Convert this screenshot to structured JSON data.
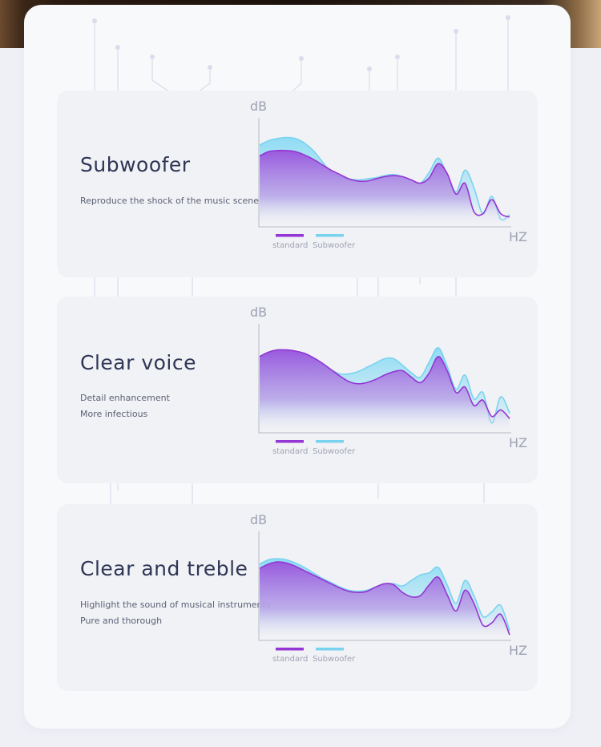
{
  "colors": {
    "standard": "#9436d3",
    "subwoofer": "#79d3ef",
    "axis": "#b7bbc7"
  },
  "cards": [
    {
      "title": "Subwoofer",
      "lines": [
        "Reproduce the shock of the music scene"
      ],
      "chart_data": {
        "type": "area",
        "ylabel": "dB",
        "xlabel": "HZ",
        "series": [
          {
            "name": "standard",
            "values": [
              0.65,
              0.69,
              0.7,
              0.7,
              0.69,
              0.66,
              0.62,
              0.57,
              0.52,
              0.48,
              0.44,
              0.42,
              0.42,
              0.44,
              0.46,
              0.47,
              0.46,
              0.43,
              0.4,
              0.45,
              0.58,
              0.49,
              0.3,
              0.4,
              0.14,
              0.12,
              0.25,
              0.12,
              0.09
            ]
          },
          {
            "name": "Subwoofer",
            "values": [
              0.75,
              0.79,
              0.81,
              0.82,
              0.81,
              0.77,
              0.7,
              0.6,
              0.5,
              0.46,
              0.44,
              0.43,
              0.44,
              0.45,
              0.47,
              0.48,
              0.46,
              0.43,
              0.4,
              0.5,
              0.63,
              0.48,
              0.32,
              0.52,
              0.36,
              0.12,
              0.28,
              0.07,
              0.11
            ]
          }
        ]
      }
    },
    {
      "title": "Clear voice",
      "lines": [
        "Detail enhancement",
        "More infectious"
      ],
      "chart_data": {
        "type": "area",
        "ylabel": "dB",
        "xlabel": "HZ",
        "series": [
          {
            "name": "standard",
            "values": [
              0.7,
              0.74,
              0.76,
              0.76,
              0.75,
              0.73,
              0.69,
              0.64,
              0.58,
              0.52,
              0.47,
              0.45,
              0.46,
              0.49,
              0.53,
              0.56,
              0.57,
              0.51,
              0.46,
              0.55,
              0.7,
              0.57,
              0.37,
              0.42,
              0.25,
              0.3,
              0.15,
              0.21,
              0.13
            ]
          },
          {
            "name": "Subwoofer",
            "values": [
              0.7,
              0.74,
              0.76,
              0.76,
              0.75,
              0.73,
              0.69,
              0.64,
              0.58,
              0.54,
              0.54,
              0.56,
              0.6,
              0.64,
              0.68,
              0.68,
              0.62,
              0.55,
              0.51,
              0.65,
              0.78,
              0.61,
              0.4,
              0.53,
              0.31,
              0.37,
              0.09,
              0.33,
              0.18
            ]
          }
        ]
      }
    },
    {
      "title": "Clear and treble",
      "lines": [
        "Highlight the sound of musical instruments",
        "Pure and thorough"
      ],
      "chart_data": {
        "type": "area",
        "ylabel": "dB",
        "xlabel": "HZ",
        "series": [
          {
            "name": "standard",
            "values": [
              0.66,
              0.7,
              0.72,
              0.71,
              0.68,
              0.64,
              0.6,
              0.56,
              0.52,
              0.48,
              0.45,
              0.44,
              0.45,
              0.49,
              0.52,
              0.51,
              0.44,
              0.4,
              0.41,
              0.51,
              0.58,
              0.42,
              0.27,
              0.46,
              0.34,
              0.14,
              0.16,
              0.24,
              0.05
            ]
          },
          {
            "name": "Subwoofer",
            "values": [
              0.7,
              0.74,
              0.75,
              0.74,
              0.71,
              0.67,
              0.62,
              0.57,
              0.53,
              0.49,
              0.46,
              0.45,
              0.46,
              0.49,
              0.52,
              0.52,
              0.5,
              0.55,
              0.6,
              0.62,
              0.67,
              0.51,
              0.34,
              0.55,
              0.41,
              0.22,
              0.26,
              0.32,
              0.09
            ]
          }
        ]
      }
    }
  ]
}
